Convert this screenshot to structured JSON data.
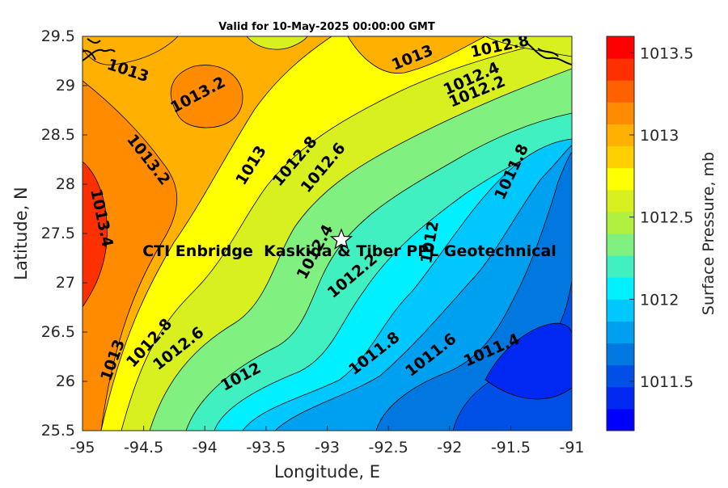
{
  "chart_data": {
    "type": "heatmap",
    "subtype": "filled-contour-map",
    "title": "Valid for 10-May-2025 00:00:00 GMT",
    "xlabel": "Longitude, E",
    "ylabel": "Latitude, N",
    "xlim": [
      -95,
      -91
    ],
    "ylim": [
      25.5,
      29.5
    ],
    "x_ticks": [
      "-95",
      "-94.5",
      "-94",
      "-93.5",
      "-93",
      "-92.5",
      "-92",
      "-91.5",
      "-91"
    ],
    "y_ticks": [
      "25.5",
      "26",
      "26.5",
      "27",
      "27.5",
      "28",
      "28.5",
      "29",
      "29.5"
    ],
    "colorbar": {
      "label": "Surface Pressure, mb",
      "range": [
        1011.2,
        1013.6
      ],
      "ticks": [
        "1011.5",
        "1012",
        "1012.5",
        "1013",
        "1013.5"
      ],
      "levels": [
        1011.2,
        1011.3,
        1011.4,
        1011.5,
        1011.6,
        1011.7,
        1011.8,
        1011.9,
        1012.0,
        1012.1,
        1012.2,
        1012.3,
        1012.4,
        1012.5,
        1012.6,
        1012.7,
        1012.8,
        1012.9,
        1013.0,
        1013.1,
        1013.2,
        1013.3,
        1013.4,
        1013.5,
        1013.6
      ],
      "colors": [
        "#0000ff",
        "#0028f0",
        "#0050e8",
        "#0078e0",
        "#00a0f0",
        "#00c8ff",
        "#00f0ff",
        "#40f0c0",
        "#80f080",
        "#b0f040",
        "#d8f020",
        "#ffff00",
        "#ffd000",
        "#ffb000",
        "#ff8c00",
        "#ff6000",
        "#ff3000",
        "#ff0000"
      ]
    },
    "contour_labels": [
      "1013",
      "1013.2",
      "1013",
      "1012.8",
      "1012.4",
      "1012.2",
      "1013.2",
      "1013",
      "1012.8",
      "1012.6",
      "1011.8",
      "1013.4",
      "1012.4",
      "1012",
      "1012.2",
      "1013",
      "1012.8",
      "1012.6",
      "1012",
      "1011.8",
      "1011.6",
      "1011.4"
    ],
    "annotation": "CTI Enbridge  Kaskida & Tiber PPL Geotechnical",
    "marker": {
      "symbol": "star",
      "lon": -92.87,
      "lat": 27.45
    }
  }
}
